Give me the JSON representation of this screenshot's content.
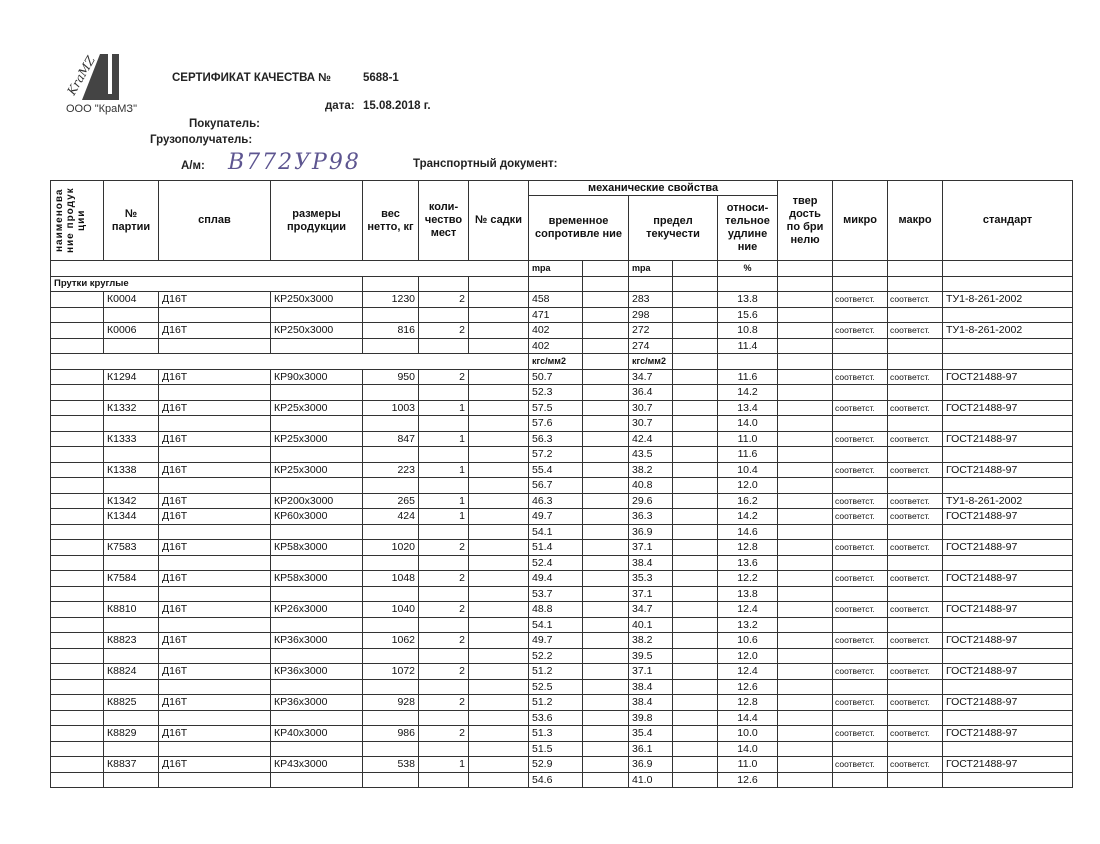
{
  "header": {
    "logo_text": "KraMZ",
    "company": "ООО \"КраМЗ\"",
    "title": "СЕРТИФИКАТ КАЧЕСТВА №",
    "number": "5688-1",
    "date_label": "дата:",
    "date": "15.08.2018 г.",
    "buyer_label": "Покупатель:",
    "consignee_label": "Грузополучатель:",
    "vehicle_label": "А/м:",
    "vehicle_handwritten": "В772УР98",
    "transport_label": "Транспортный документ:"
  },
  "columns": {
    "product_name": "наименова ние продук ции",
    "batch": "№ партии",
    "alloy": "сплав",
    "size": "размеры продукции",
    "weight": "вес нетто, кг",
    "qty": "коли- чество мест",
    "furnace": "№ садки",
    "mech": "механические свойства",
    "tensile": "временное сопротивле ние",
    "yield": "предел текучести",
    "elong": "относи- тельное удлине ние",
    "hardness": "твер дость по бри нелю",
    "micro": "микро",
    "macro": "макро",
    "standard": "стандарт"
  },
  "units1": {
    "tensile": "mpa",
    "yield": "mpa",
    "elong": "%"
  },
  "units2": {
    "tensile": "кгс/мм2",
    "yield": "кгс/мм2"
  },
  "section": "Прутки круглые",
  "batches_mpa": [
    {
      "batch": "К0004",
      "alloy": "Д16Т",
      "size": "КР250х3000",
      "weight": "1230",
      "qty": "2",
      "micro": "соответст.",
      "macro": "соответст.",
      "standard": "ТУ1-8-261-2002",
      "tests": [
        [
          "458",
          "283",
          "13.8"
        ],
        [
          "471",
          "298",
          "15.6"
        ]
      ]
    },
    {
      "batch": "К0006",
      "alloy": "Д16Т",
      "size": "КР250х3000",
      "weight": "816",
      "qty": "2",
      "micro": "соответст.",
      "macro": "соответст.",
      "standard": "ТУ1-8-261-2002",
      "tests": [
        [
          "402",
          "272",
          "10.8"
        ],
        [
          "402",
          "274",
          "11.4"
        ]
      ]
    }
  ],
  "batches_kgs": [
    {
      "batch": "К1294",
      "alloy": "Д16Т",
      "size": "КР90х3000",
      "weight": "950",
      "qty": "2",
      "micro": "соответст.",
      "macro": "соответст.",
      "standard": "ГОСТ21488-97",
      "tests": [
        [
          "50.7",
          "34.7",
          "11.6"
        ],
        [
          "52.3",
          "36.4",
          "14.2"
        ]
      ]
    },
    {
      "batch": "К1332",
      "alloy": "Д16Т",
      "size": "КР25х3000",
      "weight": "1003",
      "qty": "1",
      "micro": "соответст.",
      "macro": "соответст.",
      "standard": "ГОСТ21488-97",
      "tests": [
        [
          "57.5",
          "30.7",
          "13.4"
        ],
        [
          "57.6",
          "30.7",
          "14.0"
        ]
      ]
    },
    {
      "batch": "К1333",
      "alloy": "Д16Т",
      "size": "КР25х3000",
      "weight": "847",
      "qty": "1",
      "micro": "соответст.",
      "macro": "соответст.",
      "standard": "ГОСТ21488-97",
      "tests": [
        [
          "56.3",
          "42.4",
          "11.0"
        ],
        [
          "57.2",
          "43.5",
          "11.6"
        ]
      ]
    },
    {
      "batch": "К1338",
      "alloy": "Д16Т",
      "size": "КР25х3000",
      "weight": "223",
      "qty": "1",
      "micro": "соответст.",
      "macro": "соответст.",
      "standard": "ГОСТ21488-97",
      "tests": [
        [
          "55.4",
          "38.2",
          "10.4"
        ],
        [
          "56.7",
          "40.8",
          "12.0"
        ]
      ]
    },
    {
      "batch": "К1342",
      "alloy": "Д16Т",
      "size": "КР200х3000",
      "weight": "265",
      "qty": "1",
      "micro": "соответст.",
      "macro": "соответст.",
      "standard": "ТУ1-8-261-2002",
      "tests": [
        [
          "46.3",
          "29.6",
          "16.2"
        ]
      ]
    },
    {
      "batch": "К1344",
      "alloy": "Д16Т",
      "size": "КР60х3000",
      "weight": "424",
      "qty": "1",
      "micro": "соответст.",
      "macro": "соответст.",
      "standard": "ГОСТ21488-97",
      "tests": [
        [
          "49.7",
          "36.3",
          "14.2"
        ],
        [
          "54.1",
          "36.9",
          "14.6"
        ]
      ]
    },
    {
      "batch": "К7583",
      "alloy": "Д16Т",
      "size": "КР58х3000",
      "weight": "1020",
      "qty": "2",
      "micro": "соответст.",
      "macro": "соответст.",
      "standard": "ГОСТ21488-97",
      "tests": [
        [
          "51.4",
          "37.1",
          "12.8"
        ],
        [
          "52.4",
          "38.4",
          "13.6"
        ]
      ]
    },
    {
      "batch": "К7584",
      "alloy": "Д16Т",
      "size": "КР58х3000",
      "weight": "1048",
      "qty": "2",
      "micro": "соответст.",
      "macro": "соответст.",
      "standard": "ГОСТ21488-97",
      "tests": [
        [
          "49.4",
          "35.3",
          "12.2"
        ],
        [
          "53.7",
          "37.1",
          "13.8"
        ]
      ]
    },
    {
      "batch": "К8810",
      "alloy": "Д16Т",
      "size": "КР26х3000",
      "weight": "1040",
      "qty": "2",
      "micro": "соответст.",
      "macro": "соответст.",
      "standard": "ГОСТ21488-97",
      "tests": [
        [
          "48.8",
          "34.7",
          "12.4"
        ],
        [
          "54.1",
          "40.1",
          "13.2"
        ]
      ]
    },
    {
      "batch": "К8823",
      "alloy": "Д16Т",
      "size": "КР36х3000",
      "weight": "1062",
      "qty": "2",
      "micro": "соответст.",
      "macro": "соответст.",
      "standard": "ГОСТ21488-97",
      "tests": [
        [
          "49.7",
          "38.2",
          "10.6"
        ],
        [
          "52.2",
          "39.5",
          "12.0"
        ]
      ]
    },
    {
      "batch": "К8824",
      "alloy": "Д16Т",
      "size": "КР36х3000",
      "weight": "1072",
      "qty": "2",
      "micro": "соответст.",
      "macro": "соответст.",
      "standard": "ГОСТ21488-97",
      "tests": [
        [
          "51.2",
          "37.1",
          "12.4"
        ],
        [
          "52.5",
          "38.4",
          "12.6"
        ]
      ]
    },
    {
      "batch": "К8825",
      "alloy": "Д16Т",
      "size": "КР36х3000",
      "weight": "928",
      "qty": "2",
      "micro": "соответст.",
      "macro": "соответст.",
      "standard": "ГОСТ21488-97",
      "tests": [
        [
          "51.2",
          "38.4",
          "12.8"
        ],
        [
          "53.6",
          "39.8",
          "14.4"
        ]
      ]
    },
    {
      "batch": "К8829",
      "alloy": "Д16Т",
      "size": "КР40х3000",
      "weight": "986",
      "qty": "2",
      "micro": "соответст.",
      "macro": "соответст.",
      "standard": "ГОСТ21488-97",
      "tests": [
        [
          "51.3",
          "35.4",
          "10.0"
        ],
        [
          "51.5",
          "36.1",
          "14.0"
        ]
      ]
    },
    {
      "batch": "К8837",
      "alloy": "Д16Т",
      "size": "КР43х3000",
      "weight": "538",
      "qty": "1",
      "micro": "соответст.",
      "macro": "соответст.",
      "standard": "ГОСТ21488-97",
      "tests": [
        [
          "52.9",
          "36.9",
          "11.0"
        ],
        [
          "54.6",
          "41.0",
          "12.6"
        ]
      ]
    }
  ]
}
